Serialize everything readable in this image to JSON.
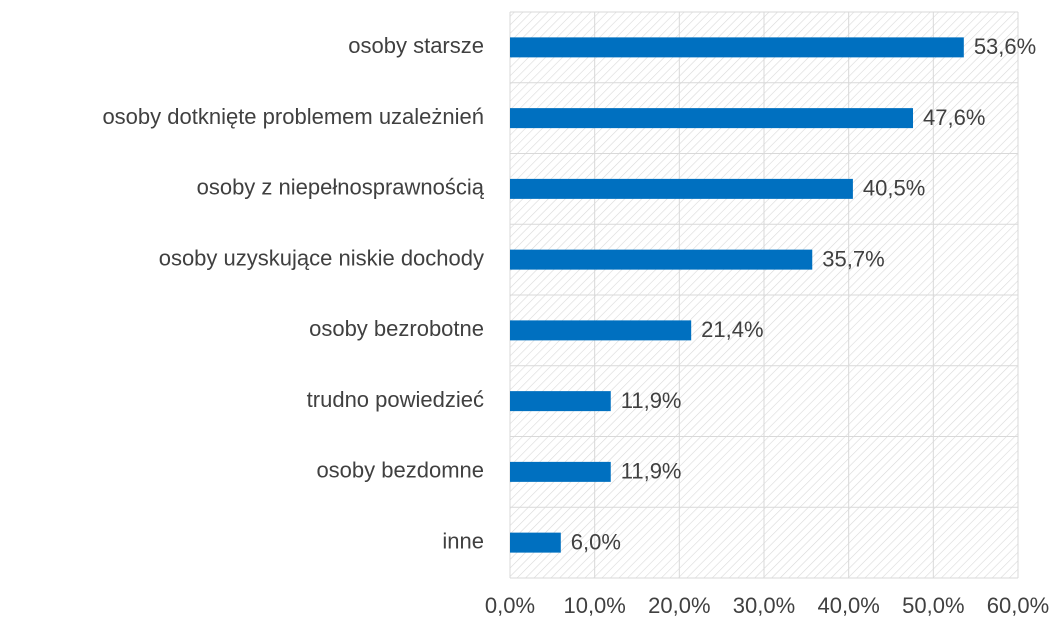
{
  "chart_data": {
    "type": "bar",
    "orientation": "horizontal",
    "categories": [
      "osoby starsze",
      "osoby dotknięte problemem uzależnień",
      "osoby z niepełnosprawnością",
      "osoby uzyskujące niskie dochody",
      "osoby bezrobotne",
      "trudno powiedzieć",
      "osoby bezdomne",
      "inne"
    ],
    "values": [
      53.6,
      47.6,
      40.5,
      35.7,
      21.4,
      11.9,
      11.9,
      6.0
    ],
    "value_labels": [
      "53,6%",
      "47,6%",
      "40,5%",
      "35,7%",
      "21,4%",
      "11,9%",
      "11,9%",
      "6,0%"
    ],
    "color": "#0070c0",
    "xlim": [
      0,
      60
    ],
    "xticks": [
      {
        "value": 0,
        "label": "0,0%"
      },
      {
        "value": 10,
        "label": "10,0%"
      },
      {
        "value": 20,
        "label": "20,0%"
      },
      {
        "value": 30,
        "label": "30,0%"
      },
      {
        "value": 40,
        "label": "40,0%"
      },
      {
        "value": 50,
        "label": "50,0%"
      },
      {
        "value": 60,
        "label": "60,0%"
      }
    ],
    "grid": true
  }
}
